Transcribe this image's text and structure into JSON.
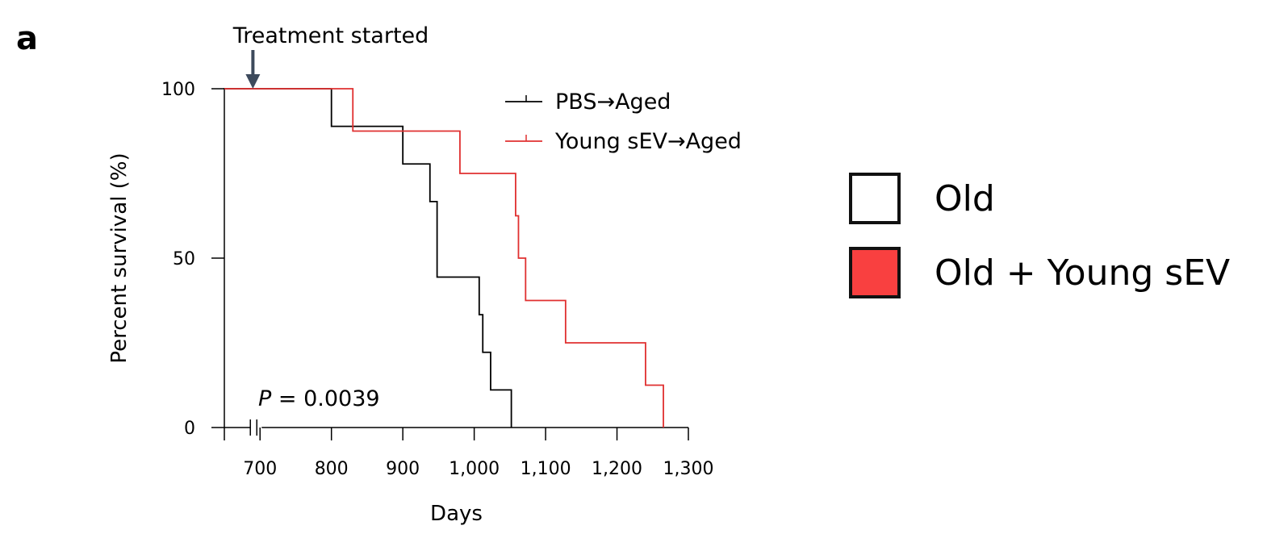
{
  "panel_label": "a",
  "external_legend": [
    {
      "label": "Old",
      "color": "#ffffff"
    },
    {
      "label": "Old + Young sEV",
      "color": "#f94040"
    }
  ],
  "chart_data": {
    "type": "line",
    "step": true,
    "annotation": "Treatment started",
    "treatment_day": 690,
    "p_value_label": "P",
    "p_value_text": " = 0.0039",
    "xlabel": "Days",
    "ylabel": "Percent survival (%)",
    "xlim": [
      650,
      1300
    ],
    "ylim": [
      0,
      100
    ],
    "axis_break_x": 700,
    "x_ticks": [
      700,
      800,
      900,
      1000,
      1100,
      1200,
      1300
    ],
    "x_tick_labels": [
      "700",
      "800",
      "900",
      "1,000",
      "1,100",
      "1,200",
      "1,300"
    ],
    "y_ticks": [
      0,
      50,
      100
    ],
    "y_tick_labels": [
      "0",
      "50",
      "100"
    ],
    "grid": false,
    "legend_position": "top-right",
    "series": [
      {
        "name": "PBS→Aged",
        "color": "#000000",
        "x": [
          650,
          800,
          900,
          938,
          948,
          1007,
          1012,
          1023,
          1052
        ],
        "y": [
          100,
          88.9,
          77.8,
          66.7,
          44.4,
          33.3,
          22.2,
          11.1,
          0
        ],
        "censored": []
      },
      {
        "name": "Young sEV→Aged",
        "color": "#e03030",
        "x": [
          650,
          830,
          980,
          1058,
          1062,
          1072,
          1128,
          1240,
          1265
        ],
        "y": [
          100,
          87.5,
          75,
          62.5,
          50,
          37.5,
          25,
          12.5,
          0
        ],
        "censored": []
      }
    ]
  }
}
